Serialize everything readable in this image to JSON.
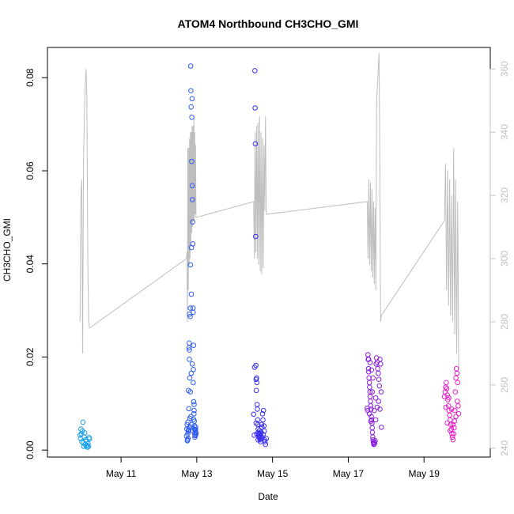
{
  "chart_data": {
    "type": "scatter",
    "title": "ATOM4 Northbound CH3CHO_GMI",
    "xlabel": "Date",
    "ylabel": "CH3CHO_GMI",
    "xlim": [
      "2018-05-09T01:20",
      "2018-05-20T18:00"
    ],
    "ylim": [
      -0.0015,
      0.0865
    ],
    "y2lim": [
      237.2,
      366.8
    ],
    "x_ticks": [
      {
        "date": "2018-05-11",
        "label": "May 11"
      },
      {
        "date": "2018-05-13",
        "label": "May 13"
      },
      {
        "date": "2018-05-15",
        "label": "May 15"
      },
      {
        "date": "2018-05-17",
        "label": "May 17"
      },
      {
        "date": "2018-05-19",
        "label": "May 19"
      }
    ],
    "y_ticks": [
      0.0,
      0.02,
      0.04,
      0.06,
      0.08
    ],
    "y_tick_labels": [
      "0.00",
      "0.02",
      "0.04",
      "0.06",
      "0.08"
    ],
    "y2_ticks": [
      240,
      260,
      280,
      300,
      320,
      340,
      360
    ],
    "y2_tick_labels": [
      "240",
      "260",
      "280",
      "300",
      "320",
      "340",
      "360"
    ],
    "grid": false,
    "legend": "none",
    "line_color": "#bebebe",
    "flights": [
      {
        "start": "2018-05-09T22:00",
        "end": "2018-05-10T04:00",
        "color": "#1aa0e8",
        "pts": [
          [
            0.0,
            0.0032
          ],
          [
            0.05,
            0.0025
          ],
          [
            0.1,
            0.0045
          ],
          [
            0.15,
            0.0035
          ],
          [
            0.2,
            0.0018
          ],
          [
            0.25,
            0.0041
          ],
          [
            0.3,
            0.006
          ],
          [
            0.35,
            0.0015
          ],
          [
            0.4,
            0.0008
          ],
          [
            0.45,
            0.0028
          ],
          [
            0.5,
            0.0037
          ],
          [
            0.55,
            0.0012
          ],
          [
            0.6,
            0.0022
          ],
          [
            0.65,
            0.0009
          ],
          [
            0.7,
            0.0019
          ],
          [
            0.75,
            0.001
          ],
          [
            0.8,
            0.0006
          ],
          [
            0.85,
            0.0014
          ],
          [
            0.9,
            0.0008
          ],
          [
            0.95,
            0.0027
          ],
          [
            1.0,
            0.0024
          ]
        ]
      },
      {
        "start": "2018-05-12T17:30",
        "end": "2018-05-12T23:30",
        "color": "#2e5cf0",
        "pts": [
          [
            0.0,
            0.003
          ],
          [
            0.03,
            0.0045
          ],
          [
            0.06,
            0.0055
          ],
          [
            0.09,
            0.002
          ],
          [
            0.12,
            0.0035
          ],
          [
            0.14,
            0.006
          ],
          [
            0.16,
            0.0025
          ],
          [
            0.18,
            0.004
          ],
          [
            0.2,
            0.0128
          ],
          [
            0.22,
            0.0045
          ],
          [
            0.24,
            0.0089
          ],
          [
            0.26,
            0.022
          ],
          [
            0.28,
            0.023
          ],
          [
            0.3,
            0.0215
          ],
          [
            0.32,
            0.0292
          ],
          [
            0.34,
            0.0155
          ],
          [
            0.36,
            0.005
          ],
          [
            0.38,
            0.0287
          ],
          [
            0.4,
            0.0305
          ],
          [
            0.42,
            0.0398
          ],
          [
            0.44,
            0.0825
          ],
          [
            0.46,
            0.0772
          ],
          [
            0.48,
            0.0737
          ],
          [
            0.5,
            0.0335
          ],
          [
            0.52,
            0.0435
          ],
          [
            0.54,
            0.062
          ],
          [
            0.56,
            0.0715
          ],
          [
            0.58,
            0.0755
          ],
          [
            0.6,
            0.0568
          ],
          [
            0.62,
            0.0538
          ],
          [
            0.64,
            0.049
          ],
          [
            0.66,
            0.0443
          ],
          [
            0.68,
            0.0305
          ],
          [
            0.7,
            0.0296
          ],
          [
            0.72,
            0.0173
          ],
          [
            0.74,
            0.0225
          ],
          [
            0.76,
            0.0104
          ],
          [
            0.78,
            0.0078
          ],
          [
            0.8,
            0.0085
          ],
          [
            0.82,
            0.0062
          ],
          [
            0.84,
            0.0045
          ],
          [
            0.86,
            0.0035
          ],
          [
            0.88,
            0.0028
          ],
          [
            0.9,
            0.0042
          ],
          [
            0.92,
            0.0031
          ],
          [
            0.94,
            0.0038
          ],
          [
            0.96,
            0.0049
          ],
          [
            0.98,
            0.0033
          ],
          [
            1.0,
            0.0037
          ],
          [
            0.1,
            0.0022
          ],
          [
            0.25,
            0.0042
          ],
          [
            0.35,
            0.0068
          ],
          [
            0.45,
            0.0072
          ],
          [
            0.55,
            0.0055
          ],
          [
            0.65,
            0.0041
          ],
          [
            0.75,
            0.0066
          ],
          [
            0.85,
            0.0052
          ],
          [
            0.95,
            0.0044
          ],
          [
            0.5,
            0.0165
          ],
          [
            0.6,
            0.0185
          ],
          [
            0.7,
            0.0145
          ],
          [
            0.8,
            0.0098
          ],
          [
            0.4,
            0.0125
          ],
          [
            0.3,
            0.0195
          ]
        ]
      },
      {
        "start": "2018-05-14T12:00",
        "end": "2018-05-14T20:00",
        "color": "#3a2ef0",
        "pts": [
          [
            0.0,
            0.0077
          ],
          [
            0.05,
            0.0032
          ],
          [
            0.08,
            0.0178
          ],
          [
            0.1,
            0.0815
          ],
          [
            0.12,
            0.0735
          ],
          [
            0.14,
            0.0658
          ],
          [
            0.16,
            0.0459
          ],
          [
            0.18,
            0.0182
          ],
          [
            0.2,
            0.0152
          ],
          [
            0.22,
            0.0128
          ],
          [
            0.24,
            0.0155
          ],
          [
            0.26,
            0.0145
          ],
          [
            0.28,
            0.0098
          ],
          [
            0.3,
            0.0088
          ],
          [
            0.32,
            0.0065
          ],
          [
            0.34,
            0.0055
          ],
          [
            0.36,
            0.0045
          ],
          [
            0.38,
            0.0038
          ],
          [
            0.4,
            0.0032
          ],
          [
            0.42,
            0.0028
          ],
          [
            0.44,
            0.0035
          ],
          [
            0.46,
            0.0042
          ],
          [
            0.48,
            0.0026
          ],
          [
            0.5,
            0.0022
          ],
          [
            0.52,
            0.0031
          ],
          [
            0.55,
            0.0018
          ],
          [
            0.58,
            0.0024
          ],
          [
            0.6,
            0.0038
          ],
          [
            0.63,
            0.0055
          ],
          [
            0.66,
            0.0049
          ],
          [
            0.7,
            0.0078
          ],
          [
            0.74,
            0.0065
          ],
          [
            0.78,
            0.0085
          ],
          [
            0.82,
            0.0052
          ],
          [
            0.86,
            0.0022
          ],
          [
            0.9,
            0.0018
          ],
          [
            0.94,
            0.0012
          ],
          [
            1.0,
            0.0025
          ],
          [
            0.2,
            0.0058
          ],
          [
            0.25,
            0.0035
          ],
          [
            0.35,
            0.0022
          ],
          [
            0.45,
            0.0029
          ],
          [
            0.55,
            0.0035
          ],
          [
            0.65,
            0.0028
          ],
          [
            0.75,
            0.0033
          ],
          [
            0.85,
            0.0041
          ]
        ]
      },
      {
        "start": "2018-05-17T12:00",
        "end": "2018-05-17T21:00",
        "color": "#8a1ee0",
        "pts": [
          [
            0.0,
            0.009
          ],
          [
            0.03,
            0.0085
          ],
          [
            0.05,
            0.0205
          ],
          [
            0.07,
            0.0195
          ],
          [
            0.09,
            0.0175
          ],
          [
            0.11,
            0.0168
          ],
          [
            0.13,
            0.0155
          ],
          [
            0.15,
            0.0145
          ],
          [
            0.17,
            0.0135
          ],
          [
            0.19,
            0.0125
          ],
          [
            0.21,
            0.0115
          ],
          [
            0.23,
            0.0105
          ],
          [
            0.25,
            0.0095
          ],
          [
            0.27,
            0.0088
          ],
          [
            0.29,
            0.0072
          ],
          [
            0.31,
            0.0065
          ],
          [
            0.33,
            0.0058
          ],
          [
            0.35,
            0.0048
          ],
          [
            0.37,
            0.0038
          ],
          [
            0.39,
            0.0028
          ],
          [
            0.41,
            0.0022
          ],
          [
            0.43,
            0.0018
          ],
          [
            0.45,
            0.0015
          ],
          [
            0.47,
            0.0012
          ],
          [
            0.5,
            0.0013
          ],
          [
            0.53,
            0.0016
          ],
          [
            0.56,
            0.002
          ],
          [
            0.6,
            0.0112
          ],
          [
            0.63,
            0.0185
          ],
          [
            0.66,
            0.0198
          ],
          [
            0.7,
            0.0189
          ],
          [
            0.74,
            0.0175
          ],
          [
            0.78,
            0.0165
          ],
          [
            0.82,
            0.0152
          ],
          [
            0.86,
            0.0138
          ],
          [
            0.9,
            0.0195
          ],
          [
            0.94,
            0.0185
          ],
          [
            0.98,
            0.0125
          ],
          [
            1.0,
            0.0049
          ],
          [
            0.1,
            0.0195
          ],
          [
            0.2,
            0.0188
          ],
          [
            0.3,
            0.0172
          ],
          [
            0.4,
            0.0155
          ],
          [
            0.5,
            0.0085
          ],
          [
            0.6,
            0.0065
          ],
          [
            0.7,
            0.0092
          ],
          [
            0.8,
            0.0105
          ],
          [
            0.9,
            0.0088
          ],
          [
            0.15,
            0.0078
          ],
          [
            0.25,
            0.0062
          ],
          [
            0.35,
            0.0125
          ]
        ]
      },
      {
        "start": "2018-05-19T13:00",
        "end": "2018-05-19T22:00",
        "color": "#e81ec8",
        "pts": [
          [
            0.0,
            0.0115
          ],
          [
            0.04,
            0.0125
          ],
          [
            0.08,
            0.0135
          ],
          [
            0.12,
            0.0145
          ],
          [
            0.16,
            0.0132
          ],
          [
            0.2,
            0.0118
          ],
          [
            0.24,
            0.0108
          ],
          [
            0.28,
            0.0095
          ],
          [
            0.32,
            0.0085
          ],
          [
            0.36,
            0.0075
          ],
          [
            0.4,
            0.0065
          ],
          [
            0.44,
            0.0055
          ],
          [
            0.48,
            0.0045
          ],
          [
            0.52,
            0.0035
          ],
          [
            0.56,
            0.0028
          ],
          [
            0.6,
            0.0022
          ],
          [
            0.64,
            0.0035
          ],
          [
            0.68,
            0.0048
          ],
          [
            0.72,
            0.0085
          ],
          [
            0.76,
            0.0125
          ],
          [
            0.8,
            0.0155
          ],
          [
            0.84,
            0.0175
          ],
          [
            0.88,
            0.0165
          ],
          [
            0.92,
            0.0145
          ],
          [
            0.96,
            0.0095
          ],
          [
            1.0,
            0.0078
          ],
          [
            0.1,
            0.0092
          ],
          [
            0.3,
            0.0112
          ],
          [
            0.5,
            0.0088
          ],
          [
            0.7,
            0.0062
          ],
          [
            0.9,
            0.0105
          ],
          [
            0.2,
            0.0058
          ],
          [
            0.4,
            0.0042
          ],
          [
            0.6,
            0.0055
          ],
          [
            0.8,
            0.0072
          ]
        ]
      }
    ],
    "line_segments": [
      {
        "start": "2018-05-09T22:00",
        "end": "2018-05-10T04:00",
        "y2": [
          280,
          320,
          325,
          270,
          330,
          345,
          355,
          360,
          350,
          300,
          280,
          278
        ]
      },
      {
        "start": "2018-05-12T17:30",
        "end": "2018-05-12T23:30",
        "y2": [
          300,
          302,
          280,
          335,
          290,
          335,
          298,
          338,
          300,
          340,
          305,
          340,
          308,
          342,
          310,
          342,
          312,
          345,
          312,
          340,
          314,
          336,
          313
        ]
      },
      {
        "start": "2018-05-14T12:00",
        "end": "2018-05-14T20:00",
        "y2": [
          318,
          300,
          340,
          302,
          342,
          300,
          343,
          298,
          345,
          296,
          340,
          295,
          338,
          297,
          336,
          315,
          345,
          314
        ]
      },
      {
        "start": "2018-05-17T12:00",
        "end": "2018-05-17T21:00",
        "y2": [
          318,
          300,
          325,
          298,
          324,
          296,
          322,
          294,
          318,
          292,
          316,
          290,
          350,
          355,
          360,
          365,
          330,
          280,
          282
        ]
      },
      {
        "start": "2018-05-19T13:00",
        "end": "2018-05-19T22:00",
        "y2": [
          312,
          330,
          290,
          328,
          285,
          325,
          282,
          320,
          280,
          335,
          276,
          325,
          270,
          318,
          265
        ]
      }
    ]
  }
}
